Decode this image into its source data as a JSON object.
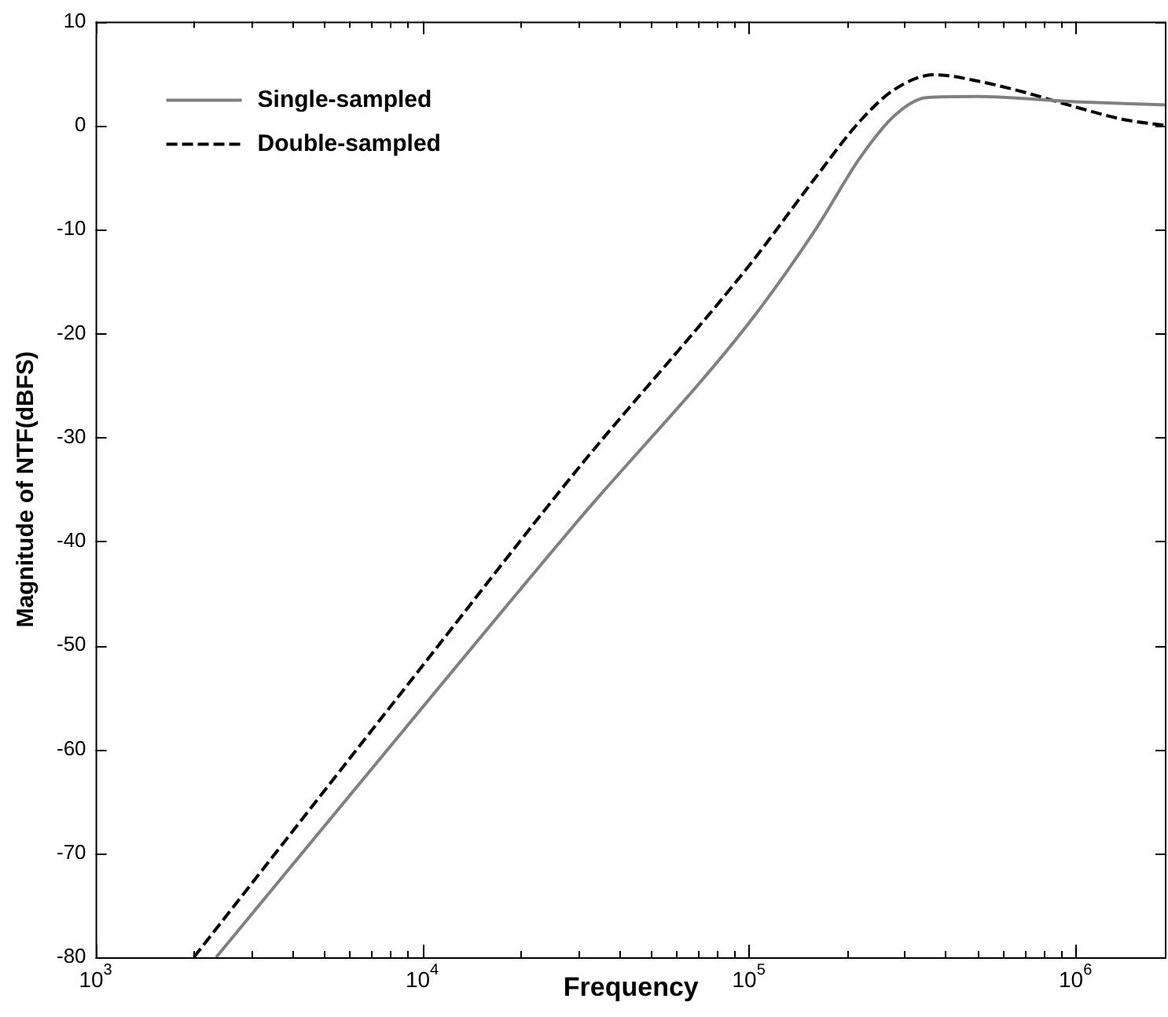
{
  "chart_data": {
    "type": "line",
    "xlabel": "Frequency",
    "ylabel": "Magnitude of NTF(dBFS)",
    "log": "x",
    "legend": "top left",
    "marker": "none",
    "xlim": [
      1000,
      1900000
    ],
    "ylim": [
      -80,
      10
    ],
    "xticks": [
      {
        "value": 1000,
        "label": "10$^{3}$"
      },
      {
        "value": 2000,
        "label": null
      },
      {
        "value": 3000,
        "label": null
      },
      {
        "value": 4000,
        "label": null
      },
      {
        "value": 5000,
        "label": null
      },
      {
        "value": 6000,
        "label": null
      },
      {
        "value": 7000,
        "label": null
      },
      {
        "value": 8000,
        "label": null
      },
      {
        "value": 9000,
        "label": null
      },
      {
        "value": 10000,
        "label": "10$^{4}$"
      },
      {
        "value": 20000,
        "label": null
      },
      {
        "value": 30000,
        "label": null
      },
      {
        "value": 40000,
        "label": null
      },
      {
        "value": 50000,
        "label": null
      },
      {
        "value": 60000,
        "label": null
      },
      {
        "value": 70000,
        "label": null
      },
      {
        "value": 80000,
        "label": null
      },
      {
        "value": 90000,
        "label": null
      },
      {
        "value": 100000,
        "label": "10$^{5}$"
      },
      {
        "value": 200000,
        "label": null
      },
      {
        "value": 300000,
        "label": null
      },
      {
        "value": 400000,
        "label": null
      },
      {
        "value": 500000,
        "label": null
      },
      {
        "value": 600000,
        "label": null
      },
      {
        "value": 700000,
        "label": null
      },
      {
        "value": 800000,
        "label": null
      },
      {
        "value": 900000,
        "label": null
      },
      {
        "value": 1000000,
        "label": "10$^{6}$"
      }
    ],
    "yticks": [
      -80,
      -70,
      -60,
      -50,
      -40,
      -30,
      -20,
      -10,
      0,
      10
    ],
    "series": [
      {
        "name": "Single-sampled",
        "color": "#808080",
        "line_style": "solid",
        "x": [
          2340,
          10000,
          30000,
          100000,
          160000,
          220000,
          280000,
          350000,
          500000,
          1000000,
          1900000
        ],
        "values": [
          -80,
          -56,
          -38,
          -19,
          -10,
          -3,
          1,
          2.7,
          2.8,
          2.3,
          2
        ]
      },
      {
        "name": "Double-sampled",
        "color": "#000000",
        "line_style": "dashed",
        "x": [
          2000,
          10000,
          30000,
          100000,
          160000,
          220000,
          280000,
          370000,
          500000,
          700000,
          1000000,
          1400000,
          1900000
        ],
        "values": [
          -80,
          -52,
          -33,
          -13.5,
          -5,
          0.5,
          3.5,
          4.9,
          4.3,
          3.2,
          1.8,
          0.6,
          0
        ]
      }
    ]
  }
}
